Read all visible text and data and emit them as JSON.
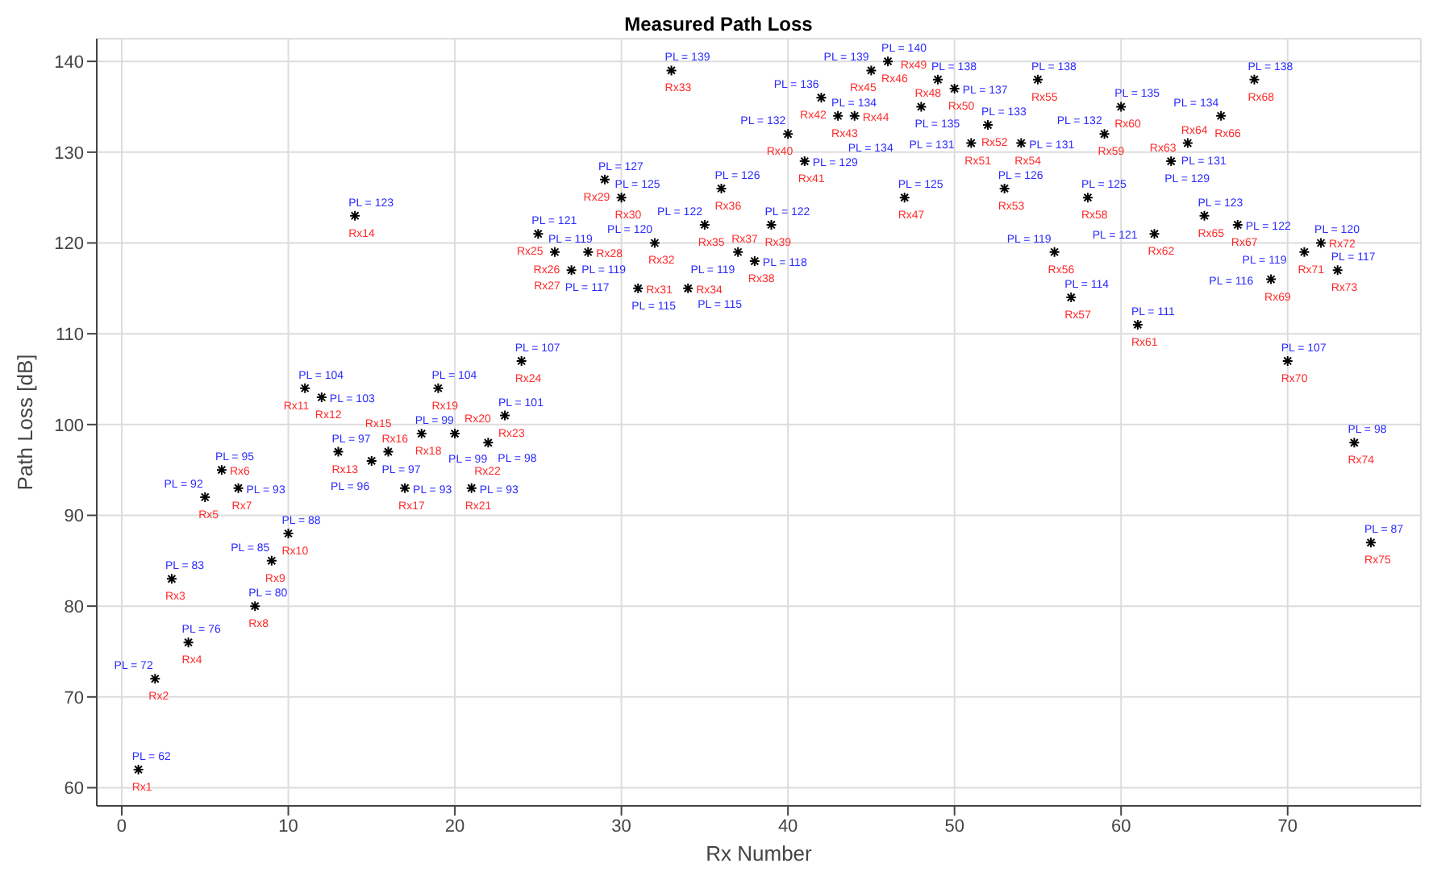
{
  "chart_data": {
    "type": "scatter",
    "title": "Measured Path Loss",
    "xlabel": "Rx Number",
    "ylabel": "Path Loss [dB]",
    "xlim": [
      -1.5,
      78
    ],
    "xticks": [
      0,
      10,
      20,
      30,
      40,
      50,
      60,
      70
    ],
    "ylim": [
      58,
      142.5
    ],
    "yticks": [
      60,
      70,
      80,
      90,
      100,
      110,
      120,
      130,
      140
    ],
    "grid": true,
    "marker": "cross",
    "x": [
      1,
      2,
      3,
      4,
      5,
      6,
      7,
      8,
      9,
      10,
      11,
      12,
      13,
      14,
      15,
      16,
      17,
      18,
      19,
      20,
      21,
      22,
      23,
      24,
      25,
      26,
      27,
      28,
      29,
      30,
      31,
      32,
      33,
      34,
      35,
      36,
      37,
      38,
      39,
      40,
      41,
      42,
      43,
      44,
      45,
      46,
      47,
      48,
      49,
      50,
      51,
      52,
      53,
      54,
      55,
      56,
      57,
      58,
      59,
      60,
      61,
      62,
      63,
      64,
      65,
      66,
      67,
      68,
      69,
      70,
      71,
      72,
      73,
      74,
      75
    ],
    "series": [
      {
        "color": "#000000",
        "values": [
          62,
          72,
          83,
          76,
          92,
          95,
          93,
          80,
          85,
          88,
          104,
          103,
          97,
          123,
          96,
          97,
          93,
          99,
          104,
          99,
          93,
          98,
          101,
          107,
          121,
          119,
          117,
          119,
          127,
          125,
          115,
          120,
          139,
          115,
          122,
          126,
          119,
          118,
          122,
          132,
          129,
          136,
          134,
          134,
          139,
          140,
          125,
          135,
          138,
          137,
          131,
          133,
          126,
          131,
          138,
          119,
          114,
          125,
          132,
          135,
          111,
          121,
          129,
          131,
          123,
          134,
          122,
          138,
          116,
          107,
          119,
          120,
          117,
          98,
          87
        ],
        "value_labels": [
          "PL = 62",
          "PL = 72",
          "PL = 83",
          "PL = 76",
          "PL = 92",
          "PL = 95",
          "PL = 93",
          "PL = 80",
          "PL = 85",
          "PL = 88",
          "PL = 104",
          "PL = 103",
          "PL = 97",
          "PL = 123",
          "PL = 96",
          "PL = 97",
          "PL = 93",
          "PL = 99",
          "PL = 104",
          "PL = 99",
          "PL = 93",
          "PL = 98",
          "PL = 101",
          "PL = 107",
          "PL = 121",
          "PL = 119",
          "PL = 117",
          "PL = 119",
          "PL = 127",
          "PL = 125",
          "PL = 115",
          "PL = 120",
          "PL = 139",
          "PL = 115",
          "PL = 122",
          "PL = 126",
          "PL = 119",
          "PL = 118",
          "PL = 122",
          "PL = 132",
          "PL = 129",
          "PL = 136",
          "PL = 134",
          "PL = 134",
          "PL = 139",
          "PL = 140",
          "PL = 125",
          "PL = 135",
          "PL = 138",
          "PL = 137",
          "PL = 131",
          "PL = 133",
          "PL = 126",
          "PL = 131",
          "PL = 138",
          "PL = 119",
          "PL = 114",
          "PL = 125",
          "PL = 132",
          "PL = 135",
          "PL = 111",
          "PL = 121",
          "PL = 129",
          "PL = 131",
          "PL = 123",
          "PL = 134",
          "PL = 122",
          "PL = 138",
          "PL = 116",
          "PL = 107",
          "PL = 119",
          "PL = 120",
          "PL = 117",
          "PL = 98",
          "PL = 87"
        ]
      }
    ],
    "annotations": [
      {
        "text": "Rx1",
        "x": 1,
        "y": 62
      },
      {
        "text": "Rx2",
        "x": 2,
        "y": 72
      },
      {
        "text": "Rx3",
        "x": 3,
        "y": 83
      },
      {
        "text": "Rx4",
        "x": 4,
        "y": 76
      },
      {
        "text": "Rx5",
        "x": 5,
        "y": 92
      },
      {
        "text": "Rx6",
        "x": 6,
        "y": 95
      },
      {
        "text": "Rx7",
        "x": 7,
        "y": 93
      },
      {
        "text": "Rx8",
        "x": 8,
        "y": 80
      },
      {
        "text": "Rx9",
        "x": 9,
        "y": 85
      },
      {
        "text": "Rx10",
        "x": 10,
        "y": 88
      },
      {
        "text": "Rx11",
        "x": 11,
        "y": 104
      },
      {
        "text": "Rx12",
        "x": 12,
        "y": 103
      },
      {
        "text": "Rx13",
        "x": 13,
        "y": 97
      },
      {
        "text": "Rx14",
        "x": 14,
        "y": 123
      },
      {
        "text": "Rx15",
        "x": 15,
        "y": 96
      },
      {
        "text": "Rx16",
        "x": 16,
        "y": 97
      },
      {
        "text": "Rx17",
        "x": 17,
        "y": 93
      },
      {
        "text": "Rx18",
        "x": 18,
        "y": 99
      },
      {
        "text": "Rx19",
        "x": 19,
        "y": 104
      },
      {
        "text": "Rx20",
        "x": 20,
        "y": 99
      },
      {
        "text": "Rx21",
        "x": 21,
        "y": 93
      },
      {
        "text": "Rx22",
        "x": 22,
        "y": 98
      },
      {
        "text": "Rx23",
        "x": 23,
        "y": 101
      },
      {
        "text": "Rx24",
        "x": 24,
        "y": 107
      },
      {
        "text": "Rx25",
        "x": 25,
        "y": 121
      },
      {
        "text": "Rx26",
        "x": 26,
        "y": 119
      },
      {
        "text": "Rx27",
        "x": 27,
        "y": 117
      },
      {
        "text": "Rx28",
        "x": 28,
        "y": 119
      },
      {
        "text": "Rx29",
        "x": 29,
        "y": 127
      },
      {
        "text": "Rx30",
        "x": 30,
        "y": 125
      },
      {
        "text": "Rx31",
        "x": 31,
        "y": 115
      },
      {
        "text": "Rx32",
        "x": 32,
        "y": 120
      },
      {
        "text": "Rx33",
        "x": 33,
        "y": 139
      },
      {
        "text": "Rx34",
        "x": 34,
        "y": 115
      },
      {
        "text": "Rx35",
        "x": 35,
        "y": 122
      },
      {
        "text": "Rx36",
        "x": 36,
        "y": 126
      },
      {
        "text": "Rx37",
        "x": 37,
        "y": 119
      },
      {
        "text": "Rx38",
        "x": 38,
        "y": 118
      },
      {
        "text": "Rx39",
        "x": 39,
        "y": 122
      },
      {
        "text": "Rx40",
        "x": 40,
        "y": 132
      },
      {
        "text": "Rx41",
        "x": 41,
        "y": 129
      },
      {
        "text": "Rx42",
        "x": 42,
        "y": 136
      },
      {
        "text": "Rx43",
        "x": 43,
        "y": 134
      },
      {
        "text": "Rx44",
        "x": 44,
        "y": 134
      },
      {
        "text": "Rx45",
        "x": 45,
        "y": 139
      },
      {
        "text": "Rx46",
        "x": 46,
        "y": 140
      },
      {
        "text": "Rx47",
        "x": 47,
        "y": 125
      },
      {
        "text": "Rx48",
        "x": 48,
        "y": 135
      },
      {
        "text": "Rx49",
        "x": 49,
        "y": 138
      },
      {
        "text": "Rx50",
        "x": 50,
        "y": 137
      },
      {
        "text": "Rx51",
        "x": 51,
        "y": 131
      },
      {
        "text": "Rx52",
        "x": 52,
        "y": 133
      },
      {
        "text": "Rx53",
        "x": 53,
        "y": 126
      },
      {
        "text": "Rx54",
        "x": 54,
        "y": 131
      },
      {
        "text": "Rx55",
        "x": 55,
        "y": 138
      },
      {
        "text": "Rx56",
        "x": 56,
        "y": 119
      },
      {
        "text": "Rx57",
        "x": 57,
        "y": 114
      },
      {
        "text": "Rx58",
        "x": 58,
        "y": 125
      },
      {
        "text": "Rx59",
        "x": 59,
        "y": 132
      },
      {
        "text": "Rx60",
        "x": 60,
        "y": 135
      },
      {
        "text": "Rx61",
        "x": 61,
        "y": 111
      },
      {
        "text": "Rx62",
        "x": 62,
        "y": 121
      },
      {
        "text": "Rx63",
        "x": 63,
        "y": 129
      },
      {
        "text": "Rx64",
        "x": 64,
        "y": 131
      },
      {
        "text": "Rx65",
        "x": 65,
        "y": 123
      },
      {
        "text": "Rx66",
        "x": 66,
        "y": 134
      },
      {
        "text": "Rx67",
        "x": 67,
        "y": 122
      },
      {
        "text": "Rx68",
        "x": 68,
        "y": 138
      },
      {
        "text": "Rx69",
        "x": 69,
        "y": 116
      },
      {
        "text": "Rx70",
        "x": 70,
        "y": 107
      },
      {
        "text": "Rx71",
        "x": 71,
        "y": 119
      },
      {
        "text": "Rx72",
        "x": 72,
        "y": 120
      },
      {
        "text": "Rx73",
        "x": 73,
        "y": 117
      },
      {
        "text": "Rx74",
        "x": 74,
        "y": 98
      },
      {
        "text": "Rx75",
        "x": 75,
        "y": 87
      }
    ]
  }
}
